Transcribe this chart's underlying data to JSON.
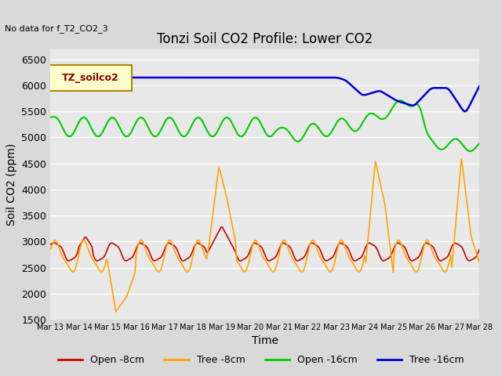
{
  "title": "Tonzi Soil CO2 Profile: Lower CO2",
  "no_data_text": "No data for f_T2_CO2_3",
  "legend_label_text": "TZ_soilco2",
  "xlabel": "Time",
  "ylabel": "Soil CO2 (ppm)",
  "ylim": [
    1500,
    6700
  ],
  "yticks": [
    1500,
    2000,
    2500,
    3000,
    3500,
    4000,
    4500,
    5000,
    5500,
    6000,
    6500
  ],
  "x_tick_labels": [
    "Mar 13",
    "Mar 14",
    "Mar 15",
    "Mar 16",
    "Mar 17",
    "Mar 18",
    "Mar 19",
    "Mar 20",
    "Mar 21",
    "Mar 22",
    "Mar 23",
    "Mar 24",
    "Mar 25",
    "Mar 26",
    "Mar 27",
    "Mar 28"
  ],
  "background_color": "#d9d9d9",
  "plot_bg_color": "#e8e8e8",
  "grid_color": "#ffffff",
  "series": [
    {
      "label": "Open -8cm",
      "color": "#cc0000"
    },
    {
      "label": "Tree -8cm",
      "color": "#ffa500"
    },
    {
      "label": "Open -16cm",
      "color": "#00cc00"
    },
    {
      "label": "Tree -16cm",
      "color": "#0000cc"
    }
  ]
}
